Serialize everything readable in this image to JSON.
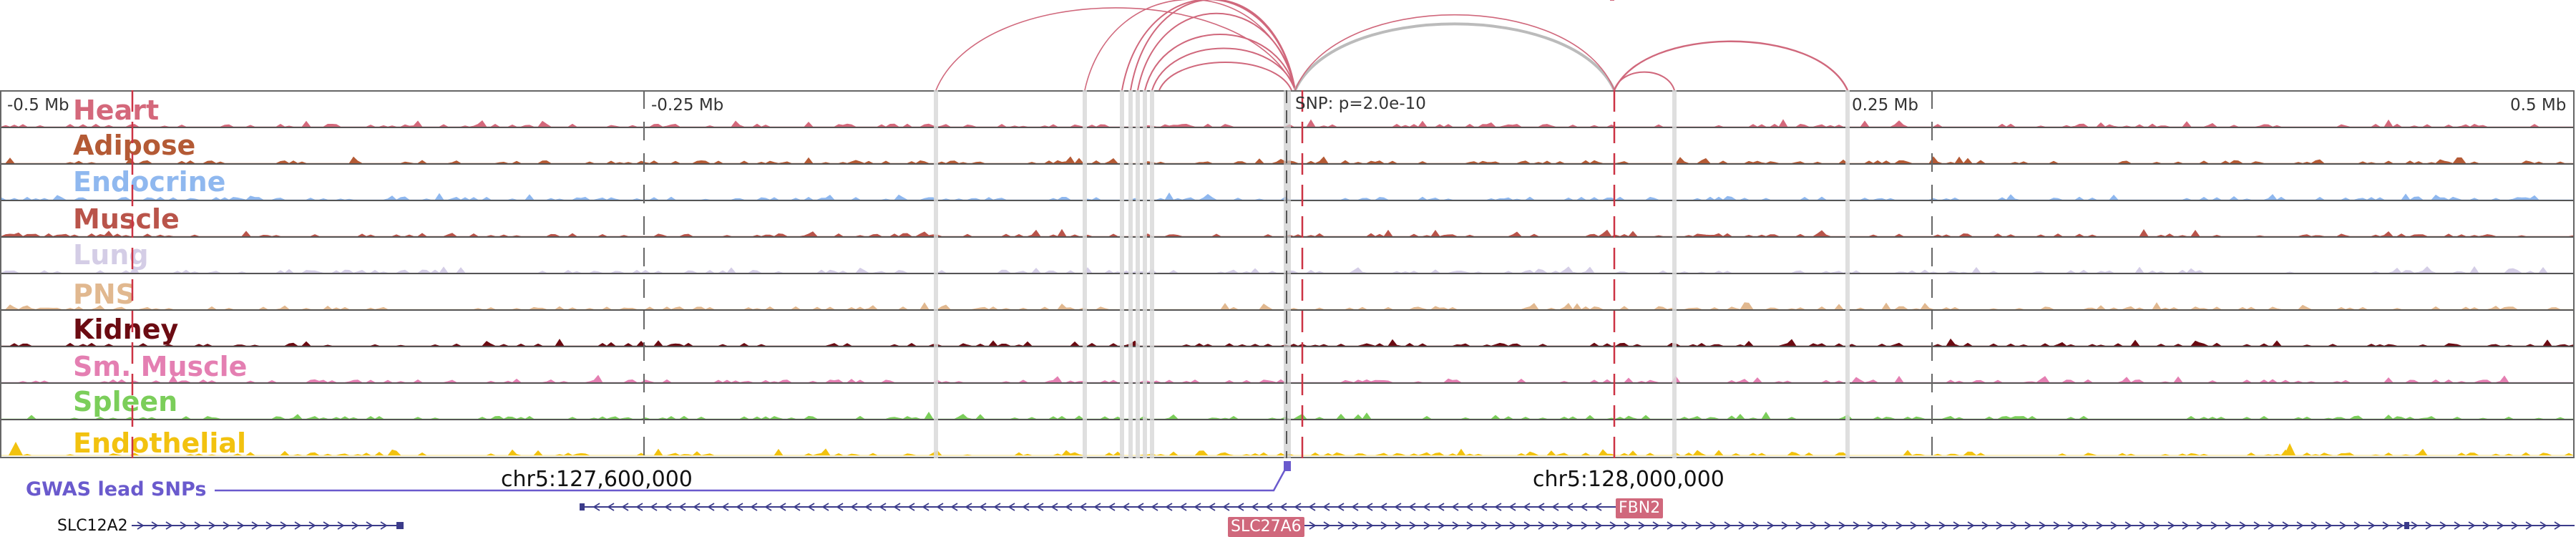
{
  "colors": {
    "arc": "#d0687c",
    "arc_lead": "#bbbbbb",
    "snp_line": "#cc3344",
    "gwas": "#6a5acd",
    "gene": "#3b3b8a",
    "highlight": "#d0687c"
  },
  "ticks": [
    "-0.5 Mb",
    "-0.25 Mb",
    "SNP: p=2.0e-10",
    "0.25 Mb",
    "0.5 Mb"
  ],
  "tracks": [
    {
      "label": "Heart",
      "color": "#d4687b"
    },
    {
      "label": "Adipose",
      "color": "#b45a35"
    },
    {
      "label": "Endocrine",
      "color": "#8fb8ef"
    },
    {
      "label": "Muscle",
      "color": "#b9544a"
    },
    {
      "label": "Lung",
      "color": "#d4cde6"
    },
    {
      "label": "PNS",
      "color": "#e1b88f"
    },
    {
      "label": "Kidney",
      "color": "#6b0b12"
    },
    {
      "label": "Sm. Muscle",
      "color": "#e47fb2"
    },
    {
      "label": "Spleen",
      "color": "#7bce5a"
    },
    {
      "label": "Endothelial",
      "color": "#f2c20f"
    }
  ],
  "gwas_label": "GWAS lead SNPs",
  "coords": [
    "chr5:127,600,000",
    "chr5:128,000,000"
  ],
  "genes": [
    {
      "name": "FBN2",
      "highlighted": true
    },
    {
      "name": "SLC27A6",
      "highlighted": true
    },
    {
      "name": "SLC12A2",
      "highlighted": false
    }
  ]
}
